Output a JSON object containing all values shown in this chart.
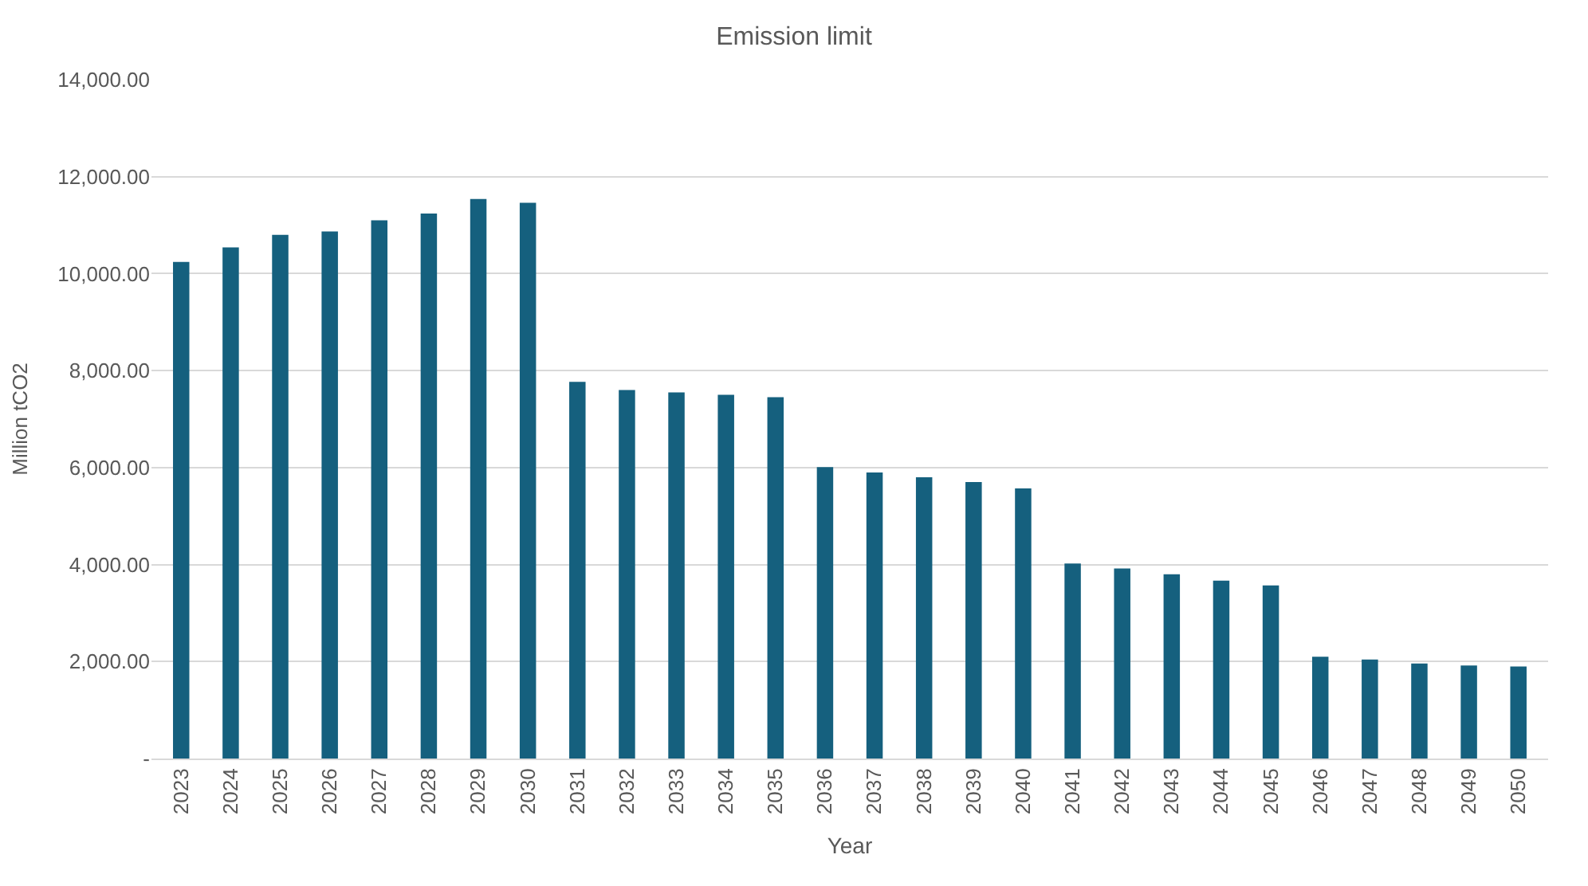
{
  "chart_data": {
    "type": "bar",
    "title": "Emission limit",
    "xlabel": "Year",
    "ylabel": "Million tCO2",
    "categories": [
      "2023",
      "2024",
      "2025",
      "2026",
      "2027",
      "2028",
      "2029",
      "2030",
      "2031",
      "2032",
      "2033",
      "2034",
      "2035",
      "2036",
      "2037",
      "2038",
      "2039",
      "2040",
      "2041",
      "2042",
      "2043",
      "2044",
      "2045",
      "2046",
      "2047",
      "2048",
      "2049",
      "2050"
    ],
    "values": [
      10240,
      10540,
      10800,
      10870,
      11100,
      11240,
      11540,
      11460,
      7770,
      7600,
      7550,
      7500,
      7450,
      6010,
      5900,
      5800,
      5700,
      5570,
      4020,
      3920,
      3800,
      3670,
      3570,
      2100,
      2040,
      1960,
      1920,
      1900
    ],
    "color": "#15607e",
    "ylim": [
      0,
      14000
    ],
    "yticks": [
      {
        "value": 0,
        "label": "-"
      },
      {
        "value": 2000,
        "label": "2,000.00"
      },
      {
        "value": 4000,
        "label": "4,000.00"
      },
      {
        "value": 6000,
        "label": "6,000.00"
      },
      {
        "value": 8000,
        "label": "8,000.00"
      },
      {
        "value": 10000,
        "label": "10,000.00"
      },
      {
        "value": 12000,
        "label": "12,000.00"
      },
      {
        "value": 14000,
        "label": "14,000.00"
      }
    ],
    "grid": "y",
    "legend": false
  }
}
